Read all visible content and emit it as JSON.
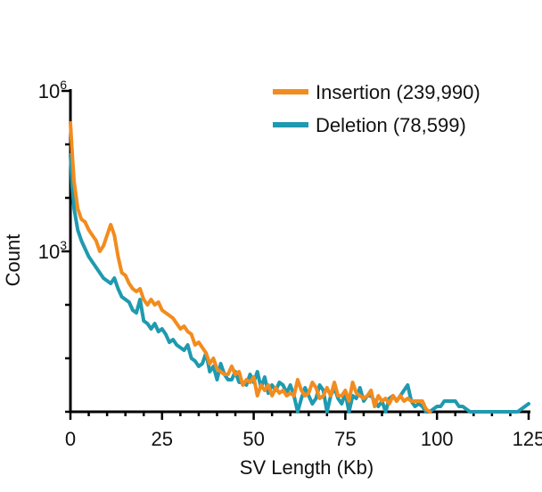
{
  "chart_data": {
    "type": "line",
    "title": "",
    "xlabel": "SV Length (Kb)",
    "ylabel": "Count",
    "xlim": [
      0,
      125
    ],
    "ylim_log10": [
      0,
      6
    ],
    "x_ticks": [
      0,
      25,
      50,
      75,
      100,
      125
    ],
    "x_tick_labels": [
      "0",
      "25",
      "50",
      "75",
      "100",
      "125"
    ],
    "y_ticks_log10": [
      3,
      6
    ],
    "y_tick_labels": [
      {
        "base": "10",
        "exponent": "3"
      },
      {
        "base": "10",
        "exponent": "6"
      }
    ],
    "legend_position": "top-right",
    "series": [
      {
        "name": "Insertion (239,990)",
        "color": "#F28C1E",
        "x": [
          0,
          0.5,
          1,
          2,
          3,
          4,
          5,
          6,
          7,
          8,
          9,
          10,
          11,
          12,
          13,
          14,
          15,
          16,
          17,
          18,
          19,
          20,
          21,
          22,
          23,
          24,
          25,
          26,
          27,
          28,
          29,
          30,
          31,
          32,
          33,
          34,
          35,
          36,
          37,
          38,
          39,
          40,
          41,
          42,
          43,
          44,
          45,
          46,
          47,
          48,
          49,
          50,
          51,
          52,
          53,
          54,
          55,
          56,
          57,
          58,
          59,
          60,
          61,
          62,
          63,
          64,
          65,
          66,
          67,
          68,
          69,
          70,
          71,
          72,
          73,
          74,
          75,
          76,
          77,
          78,
          79,
          80,
          81,
          82,
          83,
          84,
          85,
          86,
          87,
          88,
          89,
          90,
          91,
          92,
          93,
          94,
          95,
          96,
          97,
          98
        ],
        "log10_values": [
          5.4,
          4.8,
          4.3,
          3.8,
          3.6,
          3.55,
          3.4,
          3.3,
          3.2,
          3.0,
          3.1,
          3.3,
          3.5,
          3.3,
          2.9,
          2.6,
          2.55,
          2.4,
          2.3,
          2.25,
          2.3,
          2.1,
          2.0,
          2.1,
          2.0,
          2.05,
          1.9,
          1.85,
          1.8,
          1.75,
          1.65,
          1.55,
          1.6,
          1.5,
          1.45,
          1.25,
          1.3,
          1.2,
          1.1,
          0.9,
          1.0,
          0.8,
          0.75,
          0.7,
          0.7,
          0.85,
          0.7,
          0.75,
          0.5,
          0.6,
          0.55,
          0.65,
          0.3,
          0.5,
          0.4,
          0.5,
          0.3,
          0.45,
          0.35,
          0.4,
          0.3,
          0.35,
          0.3,
          0.6,
          0.4,
          0.3,
          0.35,
          0.55,
          0.45,
          0.25,
          0.3,
          0.45,
          0.3,
          0.55,
          0.3,
          0.3,
          0.4,
          0.2,
          0.55,
          0.35,
          0.3,
          0.25,
          0.3,
          0.4,
          0.1,
          0.3,
          0.2,
          0.25,
          0.15,
          0.3,
          0.2,
          0.3,
          0.2,
          0.25,
          0.2,
          0.2,
          0.2,
          0.2,
          0.05,
          0.0
        ]
      },
      {
        "name": "Deletion (78,599)",
        "color": "#1F9AB0",
        "x": [
          0,
          0.5,
          1,
          2,
          3,
          4,
          5,
          6,
          7,
          8,
          9,
          10,
          11,
          12,
          13,
          14,
          15,
          16,
          17,
          18,
          19,
          20,
          21,
          22,
          23,
          24,
          25,
          26,
          27,
          28,
          29,
          30,
          31,
          32,
          33,
          34,
          35,
          36,
          37,
          38,
          39,
          40,
          41,
          42,
          43,
          44,
          45,
          46,
          47,
          48,
          49,
          50,
          51,
          52,
          53,
          54,
          55,
          56,
          57,
          58,
          59,
          60,
          61,
          62,
          63,
          64,
          65,
          66,
          67,
          68,
          69,
          70,
          71,
          72,
          73,
          74,
          75,
          76,
          77,
          78,
          79,
          80,
          81,
          82,
          83,
          84,
          85,
          86,
          87,
          88,
          89,
          90,
          91,
          92,
          93,
          94,
          95,
          96,
          97,
          98,
          100,
          101,
          102,
          103,
          104,
          105,
          106,
          107,
          108,
          109,
          110,
          111,
          112,
          113,
          114,
          115,
          116,
          117,
          118,
          119,
          120,
          121,
          122,
          123,
          124,
          125
        ],
        "log10_values": [
          4.8,
          4.2,
          3.8,
          3.4,
          3.2,
          3.05,
          2.9,
          2.8,
          2.7,
          2.6,
          2.5,
          2.45,
          2.4,
          2.5,
          2.3,
          2.15,
          2.1,
          2.05,
          1.9,
          1.85,
          2.1,
          1.7,
          1.65,
          1.55,
          1.65,
          1.5,
          1.55,
          1.45,
          1.3,
          1.35,
          1.25,
          1.2,
          1.15,
          1.25,
          1.0,
          0.95,
          0.85,
          0.9,
          1.1,
          0.75,
          0.85,
          0.6,
          0.9,
          0.7,
          0.6,
          0.6,
          0.75,
          0.55,
          0.55,
          0.5,
          0.7,
          0.55,
          0.75,
          0.45,
          0.65,
          0.35,
          0.5,
          0.4,
          0.55,
          0.5,
          0.35,
          0.5,
          0.3,
          0.0,
          0.25,
          0.45,
          0.3,
          0.15,
          0.25,
          0.5,
          0.4,
          0.0,
          0.3,
          0.45,
          0.25,
          0.15,
          0.35,
          0.0,
          0.3,
          0.25,
          0.45,
          0.2,
          0.3,
          0.3,
          0.2,
          0.1,
          0.2,
          0.0,
          0.25,
          0.3,
          0.2,
          0.3,
          0.4,
          0.5,
          0.2,
          0.1,
          0.15,
          0.1,
          0.0,
          0.0,
          0.1,
          0.1,
          0.2,
          0.2,
          0.2,
          0.2,
          0.1,
          0.1,
          0.05,
          0.0,
          0.0,
          0.0,
          0.0,
          0.0,
          0.0,
          0.0,
          0.0,
          0.0,
          0.0,
          0.0,
          0.0,
          0.0,
          0.0,
          0.05,
          0.1,
          0.15
        ]
      }
    ]
  }
}
